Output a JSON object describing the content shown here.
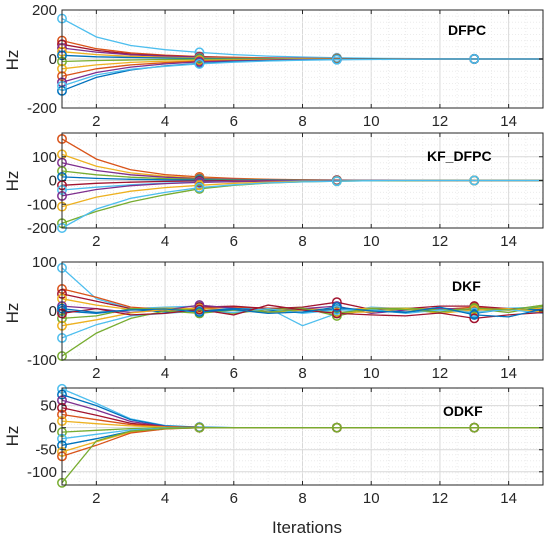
{
  "chart_data": [
    {
      "type": "line",
      "title": "DFPC",
      "ylabel": "Hz",
      "xlabel": "",
      "xlim": [
        1,
        15
      ],
      "ylim": [
        -200,
        200
      ],
      "xticks": [
        2,
        4,
        6,
        8,
        10,
        12,
        14
      ],
      "yticks": [
        -200,
        0,
        200
      ],
      "grid": true,
      "marker_x": [
        1,
        5,
        9,
        13
      ],
      "x": [
        1,
        2,
        3,
        4,
        5,
        6,
        7,
        8,
        9,
        10,
        11,
        12,
        13,
        14,
        15
      ],
      "series": [
        {
          "color": "#4DBEEE",
          "values": [
            165,
            90,
            55,
            38,
            27,
            18,
            12,
            8,
            5,
            3,
            2,
            1,
            1,
            0,
            0
          ]
        },
        {
          "color": "#D95319",
          "values": [
            75,
            42,
            25,
            16,
            10,
            7,
            5,
            3,
            2,
            1,
            1,
            0,
            0,
            0,
            0
          ]
        },
        {
          "color": "#A2142F",
          "values": [
            60,
            35,
            20,
            13,
            8,
            5,
            3,
            2,
            1,
            1,
            0,
            0,
            0,
            0,
            0
          ]
        },
        {
          "color": "#7E2F8E",
          "values": [
            45,
            28,
            17,
            11,
            7,
            4,
            3,
            2,
            1,
            1,
            0,
            0,
            0,
            0,
            0
          ]
        },
        {
          "color": "#EDB120",
          "values": [
            30,
            18,
            11,
            7,
            4,
            3,
            2,
            1,
            1,
            0,
            0,
            0,
            0,
            0,
            0
          ]
        },
        {
          "color": "#0072BD",
          "values": [
            15,
            9,
            6,
            4,
            2,
            1,
            1,
            0,
            0,
            0,
            0,
            0,
            0,
            0,
            0
          ]
        },
        {
          "color": "#77AC30",
          "values": [
            -10,
            -6,
            -4,
            -2,
            -1,
            -1,
            0,
            0,
            0,
            0,
            0,
            0,
            0,
            0,
            0
          ]
        },
        {
          "color": "#EDB120",
          "values": [
            -40,
            -24,
            -14,
            -9,
            -6,
            -4,
            -2,
            -1,
            -1,
            0,
            0,
            0,
            0,
            0,
            0
          ]
        },
        {
          "color": "#D95319",
          "values": [
            -70,
            -40,
            -24,
            -15,
            -9,
            -6,
            -4,
            -2,
            -1,
            -1,
            0,
            0,
            0,
            0,
            0
          ]
        },
        {
          "color": "#7E2F8E",
          "values": [
            -95,
            -55,
            -33,
            -20,
            -12,
            -8,
            -5,
            -3,
            -2,
            -1,
            0,
            0,
            0,
            0,
            0
          ]
        },
        {
          "color": "#0072BD",
          "values": [
            -130,
            -75,
            -45,
            -28,
            -18,
            -11,
            -7,
            -4,
            -2,
            -1,
            -1,
            0,
            0,
            0,
            0
          ]
        },
        {
          "color": "#4DBEEE",
          "values": [
            -110,
            -65,
            -42,
            -30,
            -20,
            -13,
            -8,
            -5,
            -3,
            -2,
            -1,
            0,
            0,
            0,
            0
          ]
        }
      ]
    },
    {
      "type": "line",
      "title": "KF_DFPC",
      "ylabel": "Hz",
      "xlabel": "",
      "xlim": [
        1,
        15
      ],
      "ylim": [
        -200,
        200
      ],
      "xticks": [
        2,
        4,
        6,
        8,
        10,
        12,
        14
      ],
      "yticks": [
        -200,
        -100,
        0,
        100
      ],
      "grid": true,
      "marker_x": [
        1,
        5,
        9,
        13
      ],
      "x": [
        1,
        2,
        3,
        4,
        5,
        6,
        7,
        8,
        9,
        10,
        11,
        12,
        13,
        14,
        15
      ],
      "series": [
        {
          "color": "#D95319",
          "values": [
            175,
            90,
            45,
            25,
            15,
            9,
            5,
            3,
            2,
            1,
            0,
            0,
            0,
            0,
            0
          ]
        },
        {
          "color": "#EDB120",
          "values": [
            110,
            60,
            32,
            18,
            10,
            6,
            4,
            2,
            1,
            1,
            0,
            0,
            0,
            0,
            0
          ]
        },
        {
          "color": "#7E2F8E",
          "values": [
            75,
            42,
            24,
            14,
            8,
            5,
            3,
            2,
            1,
            0,
            0,
            0,
            0,
            0,
            0
          ]
        },
        {
          "color": "#77AC30",
          "values": [
            40,
            24,
            14,
            8,
            5,
            3,
            2,
            1,
            0,
            0,
            0,
            0,
            0,
            0,
            0
          ]
        },
        {
          "color": "#0072BD",
          "values": [
            15,
            9,
            5,
            3,
            2,
            1,
            1,
            0,
            0,
            0,
            0,
            0,
            0,
            0,
            0
          ]
        },
        {
          "color": "#A2142F",
          "values": [
            -20,
            -12,
            -7,
            -4,
            -2,
            -1,
            -1,
            0,
            0,
            0,
            0,
            0,
            0,
            0,
            0
          ]
        },
        {
          "color": "#4DBEEE",
          "values": [
            -40,
            -28,
            -18,
            -11,
            -7,
            -4,
            -2,
            -1,
            -1,
            0,
            0,
            0,
            0,
            0,
            0
          ]
        },
        {
          "color": "#7E2F8E",
          "values": [
            -65,
            -38,
            -22,
            -13,
            -8,
            -5,
            -3,
            -2,
            -1,
            0,
            0,
            0,
            0,
            0,
            0
          ]
        },
        {
          "color": "#EDB120",
          "values": [
            -110,
            -70,
            -45,
            -30,
            -20,
            -12,
            -7,
            -4,
            -2,
            -1,
            0,
            0,
            0,
            0,
            0
          ]
        },
        {
          "color": "#77AC30",
          "values": [
            -180,
            -130,
            -90,
            -60,
            -35,
            -20,
            -11,
            -6,
            -3,
            -1,
            -1,
            0,
            0,
            0,
            0
          ]
        },
        {
          "color": "#4DBEEE",
          "values": [
            -200,
            -120,
            -75,
            -50,
            -30,
            -18,
            -10,
            -6,
            -3,
            -1,
            0,
            0,
            0,
            0,
            0
          ]
        }
      ]
    },
    {
      "type": "line",
      "title": "DKF",
      "ylabel": "Hz",
      "xlabel": "",
      "xlim": [
        1,
        15
      ],
      "ylim": [
        -100,
        100
      ],
      "xticks": [
        2,
        4,
        6,
        8,
        10,
        12,
        14
      ],
      "yticks": [
        -100,
        0,
        100
      ],
      "grid": true,
      "marker_x": [
        1,
        5,
        9,
        13
      ],
      "x": [
        1,
        2,
        3,
        4,
        5,
        6,
        7,
        8,
        9,
        10,
        11,
        12,
        13,
        14,
        15
      ],
      "series": [
        {
          "color": "#4DBEEE",
          "values": [
            88,
            25,
            5,
            8,
            10,
            5,
            6,
            -30,
            -5,
            8,
            4,
            -5,
            5,
            6,
            8
          ]
        },
        {
          "color": "#D95319",
          "values": [
            45,
            28,
            8,
            3,
            5,
            8,
            6,
            4,
            3,
            5,
            6,
            3,
            8,
            2,
            5
          ]
        },
        {
          "color": "#A2142F",
          "values": [
            35,
            20,
            5,
            -2,
            8,
            10,
            5,
            8,
            18,
            3,
            5,
            10,
            10,
            5,
            3
          ]
        },
        {
          "color": "#EDB120",
          "values": [
            25,
            12,
            3,
            6,
            5,
            2,
            4,
            3,
            2,
            6,
            4,
            5,
            3,
            2,
            6
          ]
        },
        {
          "color": "#7E2F8E",
          "values": [
            10,
            5,
            -3,
            2,
            12,
            6,
            -2,
            5,
            10,
            -5,
            2,
            6,
            2,
            3,
            0
          ]
        },
        {
          "color": "#0072BD",
          "values": [
            0,
            -5,
            3,
            -2,
            0,
            5,
            2,
            -3,
            4,
            2,
            -2,
            3,
            -5,
            4,
            2
          ]
        },
        {
          "color": "#77AC30",
          "values": [
            -15,
            -10,
            5,
            4,
            2,
            -5,
            3,
            6,
            -10,
            4,
            6,
            2,
            4,
            -3,
            10
          ]
        },
        {
          "color": "#EDB120",
          "values": [
            -30,
            -18,
            -4,
            3,
            -3,
            2,
            -4,
            2,
            -3,
            -2,
            5,
            -5,
            2,
            5,
            -2
          ]
        },
        {
          "color": "#4DBEEE",
          "values": [
            -55,
            -28,
            -10,
            -5,
            0,
            -3,
            5,
            -5,
            2,
            3,
            -5,
            2,
            -3,
            3,
            -5
          ]
        },
        {
          "color": "#77AC30",
          "values": [
            -92,
            -45,
            -15,
            0,
            -5,
            2,
            -2,
            3,
            -5,
            5,
            3,
            -2,
            6,
            2,
            12
          ]
        },
        {
          "color": "#A2142F",
          "values": [
            -5,
            5,
            -8,
            -5,
            3,
            -8,
            12,
            2,
            -5,
            -8,
            -10,
            -4,
            -15,
            -8,
            -3
          ]
        },
        {
          "color": "#0072BD",
          "values": [
            5,
            -3,
            2,
            4,
            -2,
            3,
            -5,
            -2,
            8,
            0,
            -3,
            8,
            -8,
            -12,
            4
          ]
        }
      ]
    },
    {
      "type": "line",
      "title": "ODKF",
      "ylabel": "Hz",
      "xlabel": "Iterations",
      "xlim": [
        1,
        15
      ],
      "ylim": [
        -130,
        90
      ],
      "xticks": [
        2,
        4,
        6,
        8,
        10,
        12,
        14
      ],
      "yticks": [
        -100,
        -50,
        0,
        50
      ],
      "grid": true,
      "marker_x": [
        1,
        5,
        9,
        13
      ],
      "x": [
        1,
        2,
        3,
        4,
        5,
        6,
        7,
        8,
        9,
        10,
        11,
        12,
        13,
        14,
        15
      ],
      "series": [
        {
          "color": "#4DBEEE",
          "values": [
            88,
            55,
            20,
            5,
            1,
            0,
            0,
            0,
            0,
            0,
            0,
            0,
            0,
            0,
            0
          ]
        },
        {
          "color": "#0072BD",
          "values": [
            75,
            50,
            18,
            4,
            1,
            0,
            0,
            0,
            0,
            0,
            0,
            0,
            0,
            0,
            0
          ]
        },
        {
          "color": "#7E2F8E",
          "values": [
            62,
            40,
            14,
            3,
            0,
            0,
            0,
            0,
            0,
            0,
            0,
            0,
            0,
            0,
            0
          ]
        },
        {
          "color": "#A2142F",
          "values": [
            45,
            28,
            10,
            2,
            0,
            0,
            0,
            0,
            0,
            0,
            0,
            0,
            0,
            0,
            0
          ]
        },
        {
          "color": "#D95319",
          "values": [
            30,
            18,
            7,
            2,
            0,
            0,
            0,
            0,
            0,
            0,
            0,
            0,
            0,
            0,
            0
          ]
        },
        {
          "color": "#EDB120",
          "values": [
            15,
            9,
            4,
            1,
            0,
            0,
            0,
            0,
            0,
            0,
            0,
            0,
            0,
            0,
            0
          ]
        },
        {
          "color": "#77AC30",
          "values": [
            -10,
            -6,
            -2,
            0,
            0,
            0,
            0,
            0,
            0,
            0,
            0,
            0,
            0,
            0,
            0
          ]
        },
        {
          "color": "#4DBEEE",
          "values": [
            -25,
            -15,
            -5,
            -1,
            0,
            0,
            0,
            0,
            0,
            0,
            0,
            0,
            0,
            0,
            0
          ]
        },
        {
          "color": "#0072BD",
          "values": [
            -40,
            -25,
            -8,
            -2,
            0,
            0,
            0,
            0,
            0,
            0,
            0,
            0,
            0,
            0,
            0
          ]
        },
        {
          "color": "#EDB120",
          "values": [
            -55,
            -32,
            -10,
            -2,
            0,
            0,
            0,
            0,
            0,
            0,
            0,
            0,
            0,
            0,
            0
          ]
        },
        {
          "color": "#D95319",
          "values": [
            -65,
            -40,
            -12,
            -3,
            0,
            0,
            0,
            0,
            0,
            0,
            0,
            0,
            0,
            0,
            0
          ]
        },
        {
          "color": "#77AC30",
          "values": [
            -125,
            -30,
            -8,
            -2,
            0,
            0,
            0,
            0,
            0,
            0,
            0,
            0,
            0,
            0,
            0
          ]
        }
      ]
    }
  ]
}
